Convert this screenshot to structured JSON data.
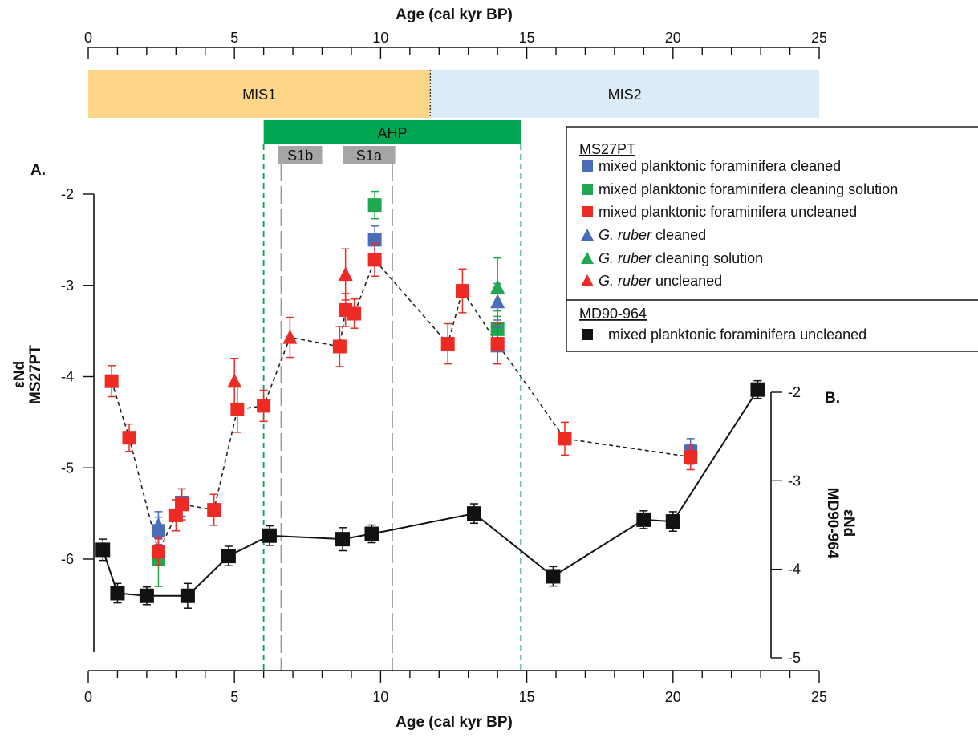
{
  "chart_data": {
    "type": "scatter",
    "x_axis": {
      "title": "Age (cal kyr BP)",
      "range": [
        0,
        25
      ],
      "major_ticks": [
        0,
        5,
        10,
        15,
        20,
        25
      ],
      "minor_step": 1
    },
    "top_axis": {
      "title": "Age (cal kyr BP)",
      "range": [
        0,
        25
      ],
      "major_ticks": [
        0,
        5,
        10,
        15,
        20,
        25
      ],
      "minor_step": 1
    },
    "left_axis": {
      "title_line1": "εNd",
      "title_line2": "MS27PT",
      "range": [
        -6.9,
        -1.6
      ],
      "ticks": [
        -2,
        -3,
        -4,
        -5,
        -6
      ],
      "panel_label": "A."
    },
    "right_axis": {
      "title_line1": "εNd",
      "title_line2": "MD90-964",
      "range": [
        -5,
        -2
      ],
      "ticks": [
        -2,
        -3,
        -4,
        -5
      ],
      "panel_label": "B."
    },
    "stages": [
      {
        "label": "MIS1",
        "start": 0,
        "end": 11.7,
        "color": "#fdd68a"
      },
      {
        "label": "MIS2",
        "start": 11.7,
        "end": 25,
        "color": "#ddebf7"
      }
    ],
    "ahp": {
      "label": "AHP",
      "start": 6,
      "end": 14.8,
      "color": "#00a651"
    },
    "sapropels": [
      {
        "label": "S1b",
        "start": 6.5,
        "end": 8.0,
        "line_start": 6.6,
        "line_end": 10.4
      },
      {
        "label": "S1a",
        "start": 8.7,
        "end": 10.5
      }
    ],
    "legend": {
      "group1_title": "MS27PT",
      "group2_title": "MD90-964",
      "entries": [
        {
          "series": "ms27_mixed_cleaned",
          "label": "mixed planktonic foraminifera cleaned"
        },
        {
          "series": "ms27_mixed_solution",
          "label": "mixed planktonic foraminifera cleaning solution"
        },
        {
          "series": "ms27_mixed_uncleaned",
          "label": "mixed planktonic foraminifera uncleaned"
        },
        {
          "series": "ms27_ruber_cleaned",
          "label_italic": "G. ruber",
          "label_rest": " cleaned"
        },
        {
          "series": "ms27_ruber_solution",
          "label_italic": "G. ruber",
          "label_rest": " cleaning solution"
        },
        {
          "series": "ms27_ruber_uncleaned",
          "label_italic": "G. ruber",
          "label_rest": " uncleaned"
        },
        {
          "series": "md90_mixed_uncleaned",
          "label": "mixed planktonic foraminifera uncleaned"
        }
      ]
    },
    "series": [
      {
        "id": "ms27_mixed_uncleaned",
        "axis": "left",
        "marker": "square",
        "color": "#ee2a24",
        "points": [
          {
            "x": 0.8,
            "y": -4.05,
            "err": 0.17
          },
          {
            "x": 1.4,
            "y": -4.67,
            "err": 0.15
          },
          {
            "x": 2.4,
            "y": -5.92,
            "err": 0.15
          },
          {
            "x": 3.0,
            "y": -5.52,
            "err": 0.17
          },
          {
            "x": 3.2,
            "y": -5.4,
            "err": 0.17
          },
          {
            "x": 4.3,
            "y": -5.46,
            "err": 0.17
          },
          {
            "x": 5.1,
            "y": -4.36,
            "err": 0.25
          },
          {
            "x": 6.0,
            "y": -4.32,
            "err": 0.17
          },
          {
            "x": 8.6,
            "y": -3.67,
            "err": 0.22
          },
          {
            "x": 8.8,
            "y": -3.27,
            "err": 0.18
          },
          {
            "x": 9.1,
            "y": -3.31,
            "err": 0.16
          },
          {
            "x": 9.8,
            "y": -2.72,
            "err": 0.18
          },
          {
            "x": 12.3,
            "y": -3.64,
            "err": 0.22
          },
          {
            "x": 12.8,
            "y": -3.06,
            "err": 0.24
          },
          {
            "x": 14.0,
            "y": -3.64,
            "err": 0.22
          },
          {
            "x": 16.3,
            "y": -4.68,
            "err": 0.18
          },
          {
            "x": 20.6,
            "y": -4.88,
            "err": 0.14
          }
        ]
      },
      {
        "id": "ms27_mixed_cleaned",
        "axis": "left",
        "marker": "square",
        "color": "#4b6cb7",
        "points": [
          {
            "x": 2.4,
            "y": -5.69,
            "err": 0.15
          },
          {
            "x": 3.2,
            "y": -5.38,
            "err": 0.15
          },
          {
            "x": 9.8,
            "y": -2.5,
            "err": 0.15
          },
          {
            "x": 14.0,
            "y": -3.66,
            "err": 0.2
          },
          {
            "x": 20.6,
            "y": -4.82,
            "err": 0.14
          }
        ]
      },
      {
        "id": "ms27_mixed_solution",
        "axis": "left",
        "marker": "square",
        "color": "#1fa84f",
        "points": [
          {
            "x": 2.4,
            "y": -6.0,
            "err": 0.3
          },
          {
            "x": 9.8,
            "y": -2.12,
            "err": 0.15
          },
          {
            "x": 14.0,
            "y": -3.48,
            "err": 0.2
          }
        ]
      },
      {
        "id": "ms27_ruber_cleaned",
        "axis": "left",
        "marker": "triangle",
        "color": "#4b6cb7",
        "points": [
          {
            "x": 2.4,
            "y": -5.63,
            "err": 0.15
          },
          {
            "x": 14.0,
            "y": -3.18,
            "err": 0.2
          }
        ]
      },
      {
        "id": "ms27_ruber_solution",
        "axis": "left",
        "marker": "triangle",
        "color": "#1fa84f",
        "points": [
          {
            "x": 14.0,
            "y": -3.02,
            "err": 0.32
          }
        ]
      },
      {
        "id": "ms27_ruber_uncleaned",
        "axis": "left",
        "marker": "triangle",
        "color": "#ee2a24",
        "points": [
          {
            "x": 5.0,
            "y": -4.05,
            "err": 0.25
          },
          {
            "x": 6.9,
            "y": -3.57,
            "err": 0.22
          },
          {
            "x": 8.8,
            "y": -2.88,
            "err": 0.28
          }
        ]
      },
      {
        "id": "md90_mixed_uncleaned",
        "axis": "right",
        "marker": "square",
        "color": "#111111",
        "points": [
          {
            "x": 0.5,
            "y": -3.78,
            "err": 0.12
          },
          {
            "x": 1.0,
            "y": -4.27,
            "err": 0.11
          },
          {
            "x": 2.0,
            "y": -4.3,
            "err": 0.1
          },
          {
            "x": 3.4,
            "y": -4.3,
            "err": 0.14
          },
          {
            "x": 4.8,
            "y": -3.85,
            "err": 0.11
          },
          {
            "x": 6.2,
            "y": -3.62,
            "err": 0.11
          },
          {
            "x": 8.7,
            "y": -3.66,
            "err": 0.13
          },
          {
            "x": 9.7,
            "y": -3.6,
            "err": 0.1
          },
          {
            "x": 13.2,
            "y": -3.37,
            "err": 0.11
          },
          {
            "x": 15.9,
            "y": -4.08,
            "err": 0.11
          },
          {
            "x": 19.0,
            "y": -3.44,
            "err": 0.1
          },
          {
            "x": 20.0,
            "y": -3.46,
            "err": 0.11
          },
          {
            "x": 22.9,
            "y": -1.97,
            "err": 0.1
          }
        ]
      }
    ],
    "dashed_line": {
      "color": "#222222",
      "points": [
        {
          "x": 0.8,
          "y": -4.05
        },
        {
          "x": 1.4,
          "y": -4.67
        },
        {
          "x": 2.4,
          "y": -5.92
        },
        {
          "x": 3.0,
          "y": -5.52
        },
        {
          "x": 3.2,
          "y": -5.4
        },
        {
          "x": 4.3,
          "y": -5.46
        },
        {
          "x": 5.1,
          "y": -4.36
        },
        {
          "x": 6.0,
          "y": -4.32
        },
        {
          "x": 6.9,
          "y": -3.57
        },
        {
          "x": 8.6,
          "y": -3.67
        },
        {
          "x": 8.8,
          "y": -3.27
        },
        {
          "x": 9.1,
          "y": -3.31
        },
        {
          "x": 9.8,
          "y": -2.72
        },
        {
          "x": 12.3,
          "y": -3.64
        },
        {
          "x": 12.8,
          "y": -3.06
        },
        {
          "x": 14.0,
          "y": -3.64
        },
        {
          "x": 16.3,
          "y": -4.68
        },
        {
          "x": 20.6,
          "y": -4.88
        }
      ]
    },
    "solid_line_series": "md90_mixed_uncleaned"
  }
}
